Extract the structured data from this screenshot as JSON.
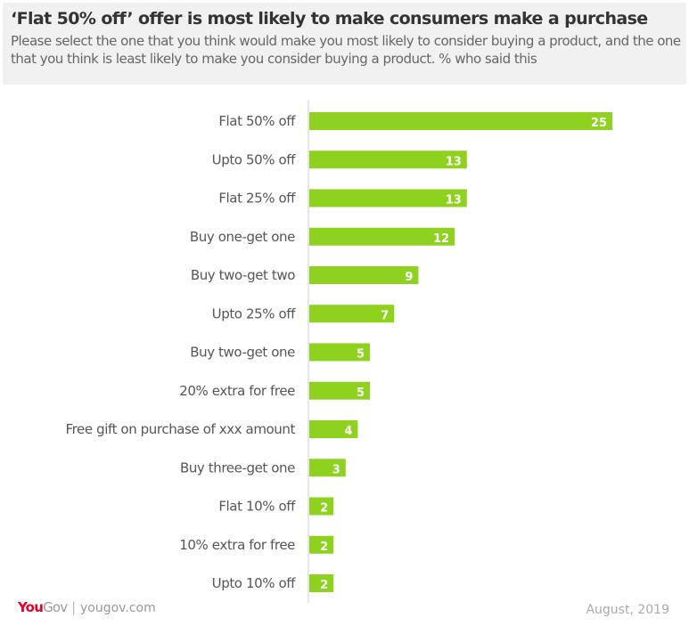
{
  "header": {
    "title": "‘Flat 50% off’ offer is most likely to make consumers make a purchase",
    "subtitle": "Please select the one that you think would make you most likely to consider buying a product, and the one that you think is least likely to make you consider buying a product. % who said this"
  },
  "footer": {
    "logo_you": "You",
    "logo_gov": "Gov",
    "url": "yougov.com",
    "date": "August, 2019"
  },
  "chart_data": {
    "type": "bar",
    "orientation": "horizontal",
    "bar_color": "#8fd11f",
    "categories": [
      "Flat 50% off",
      "Upto 50% off",
      "Flat 25% off",
      "Buy one-get one",
      "Buy two-get two",
      "Upto 25% off",
      "Buy two-get one",
      "20% extra for free",
      "Free gift on purchase of xxx amount",
      "Buy three-get one",
      "Flat 10% off",
      "10% extra for free",
      "Upto 10% off"
    ],
    "values": [
      25,
      13,
      13,
      12,
      9,
      7,
      5,
      5,
      4,
      3,
      2,
      2,
      2
    ],
    "grid": false,
    "legend": "none"
  }
}
